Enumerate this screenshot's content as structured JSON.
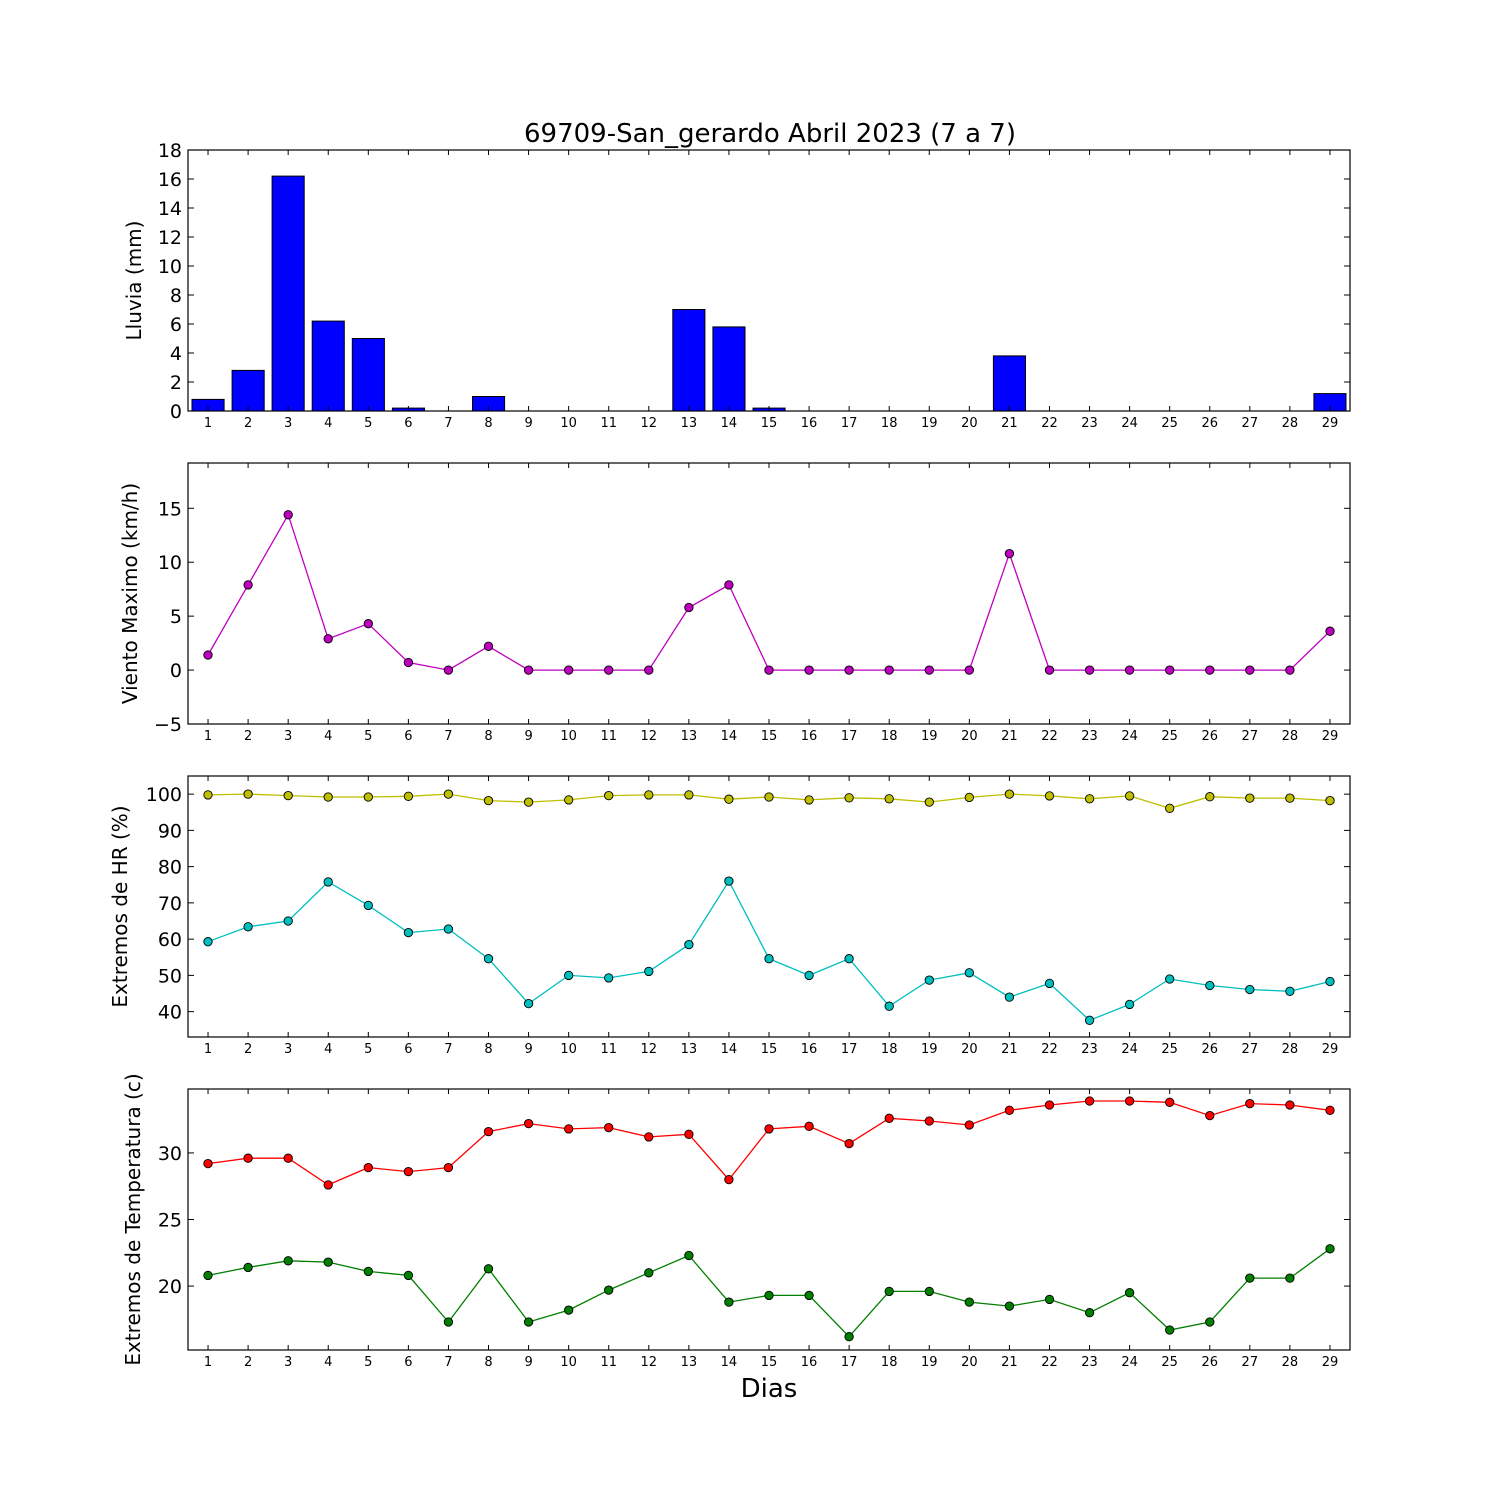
{
  "figure": {
    "title": "69709-San_gerardo Abril 2023  (7 a 7)",
    "xlabel": "Dias"
  },
  "chart_data": [
    {
      "type": "bar",
      "ylabel": "Lluvia (mm)",
      "ylim": [
        0,
        18
      ],
      "yticks": [
        0,
        2,
        4,
        6,
        8,
        10,
        12,
        14,
        16,
        18
      ],
      "categories": [
        "1",
        "2",
        "3",
        "4",
        "5",
        "6",
        "7",
        "8",
        "9",
        "10",
        "11",
        "12",
        "13",
        "14",
        "15",
        "16",
        "17",
        "18",
        "19",
        "20",
        "21",
        "22",
        "23",
        "24",
        "25",
        "26",
        "27",
        "28",
        "29"
      ],
      "series": [
        {
          "color": "#0000ff",
          "values": [
            0.8,
            2.8,
            16.2,
            6.2,
            5.0,
            0.2,
            0,
            1.0,
            0,
            0,
            0,
            0,
            7.0,
            5.8,
            0.2,
            0,
            0,
            0,
            0,
            0,
            3.8,
            0,
            0,
            0,
            0,
            0,
            0,
            0,
            1.2
          ]
        }
      ]
    },
    {
      "type": "line",
      "ylabel": "Viento Maximo (km/h)",
      "ylim": [
        -5,
        19.2
      ],
      "yticks": [
        -5,
        0,
        5,
        10,
        15
      ],
      "ytick_labels": [
        "−5",
        "0",
        "5",
        "10",
        "15"
      ],
      "categories": [
        "1",
        "2",
        "3",
        "4",
        "5",
        "6",
        "7",
        "8",
        "9",
        "10",
        "11",
        "12",
        "13",
        "14",
        "15",
        "16",
        "17",
        "18",
        "19",
        "20",
        "21",
        "22",
        "23",
        "24",
        "25",
        "26",
        "27",
        "28",
        "29"
      ],
      "series": [
        {
          "color": "#bf00bf",
          "values": [
            1.4,
            7.9,
            14.4,
            2.9,
            4.3,
            0.7,
            0,
            2.2,
            0,
            0,
            0,
            0,
            5.8,
            7.9,
            0,
            0,
            0,
            0,
            0,
            0,
            10.8,
            0,
            0,
            0,
            0,
            0,
            0,
            0,
            3.6
          ]
        }
      ]
    },
    {
      "type": "line",
      "ylabel": "Extremos de HR (%)",
      "ylim": [
        33,
        105
      ],
      "yticks": [
        40,
        50,
        60,
        70,
        80,
        90,
        100
      ],
      "categories": [
        "1",
        "2",
        "3",
        "4",
        "5",
        "6",
        "7",
        "8",
        "9",
        "10",
        "11",
        "12",
        "13",
        "14",
        "15",
        "16",
        "17",
        "18",
        "19",
        "20",
        "21",
        "22",
        "23",
        "24",
        "25",
        "26",
        "27",
        "28",
        "29"
      ],
      "series": [
        {
          "color": "#bfbf00",
          "values": [
            99.8,
            100,
            99.6,
            99.2,
            99.2,
            99.4,
            100,
            98.2,
            97.8,
            98.4,
            99.6,
            99.8,
            99.8,
            98.6,
            99.2,
            98.4,
            99,
            98.7,
            97.8,
            99.1,
            100,
            99.5,
            98.7,
            99.5,
            96.1,
            99.3,
            98.9,
            98.9,
            98.2
          ]
        },
        {
          "color": "#00bfbf",
          "values": [
            59.3,
            63.4,
            65,
            75.8,
            69.3,
            61.8,
            62.8,
            54.6,
            42.2,
            50,
            49.3,
            51.1,
            58.5,
            76,
            54.6,
            50,
            54.6,
            41.5,
            48.7,
            50.7,
            44,
            47.8,
            37.6,
            42,
            49,
            47.2,
            46.1,
            45.6,
            48.3
          ]
        }
      ]
    },
    {
      "type": "line",
      "ylabel": "Extremos de Temperatura (c)",
      "ylim": [
        15.2,
        34.8
      ],
      "yticks": [
        20,
        25,
        30
      ],
      "categories": [
        "1",
        "2",
        "3",
        "4",
        "5",
        "6",
        "7",
        "8",
        "9",
        "10",
        "11",
        "12",
        "13",
        "14",
        "15",
        "16",
        "17",
        "18",
        "19",
        "20",
        "21",
        "22",
        "23",
        "24",
        "25",
        "26",
        "27",
        "28",
        "29"
      ],
      "series": [
        {
          "color": "#ff0000",
          "values": [
            29.2,
            29.6,
            29.6,
            27.6,
            28.9,
            28.6,
            28.9,
            31.6,
            32.2,
            31.8,
            31.9,
            31.2,
            31.4,
            28,
            31.8,
            32,
            30.7,
            32.6,
            32.4,
            32.1,
            33.2,
            33.6,
            33.9,
            33.9,
            33.8,
            32.8,
            33.7,
            33.6,
            33.2
          ]
        },
        {
          "color": "#007f00",
          "values": [
            20.8,
            21.4,
            21.9,
            21.8,
            21.1,
            20.8,
            17.3,
            21.3,
            17.3,
            18.2,
            19.7,
            21,
            22.3,
            18.8,
            19.3,
            19.3,
            16.2,
            19.6,
            19.6,
            18.8,
            18.5,
            19,
            18,
            19.5,
            16.7,
            17.3,
            20.6,
            20.6,
            22.8
          ]
        }
      ]
    }
  ]
}
